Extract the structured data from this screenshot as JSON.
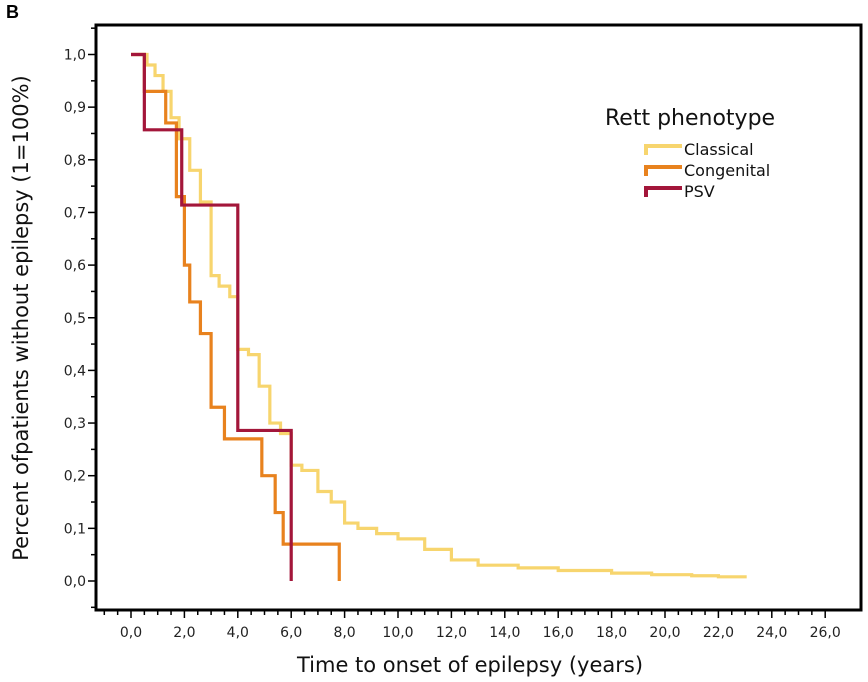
{
  "panel_label": "B",
  "chart_data": {
    "type": "line",
    "subtype": "kaplan-meier-step",
    "xlabel": "Time to onset of epilepsy (years)",
    "ylabel": "Percent ofpatients without  epilepsy (1=100%)",
    "xlim": [
      -1,
      26
    ],
    "ylim": [
      -0.05,
      1.05
    ],
    "x_ticks": [
      "0,0",
      "2,0",
      "4,0",
      "6,0",
      "8,0",
      "10,0",
      "12,0",
      "14,0",
      "16,0",
      "18,0",
      "20,0",
      "22,0",
      "24,0",
      "26,0"
    ],
    "x_tick_values": [
      0,
      2,
      4,
      6,
      8,
      10,
      12,
      14,
      16,
      18,
      20,
      22,
      24,
      26
    ],
    "y_ticks": [
      "0,0",
      "0,1",
      "0,2",
      "0,3",
      "0,4",
      "0,5",
      "0,6",
      "0,7",
      "0,8",
      "0,9",
      "1,0"
    ],
    "y_tick_values": [
      0,
      0.1,
      0.2,
      0.3,
      0.4,
      0.5,
      0.6,
      0.7,
      0.8,
      0.9,
      1.0
    ],
    "grid": false,
    "legend": {
      "title": "Rett phenotype",
      "position": "top-right"
    },
    "series": [
      {
        "name": "Classical",
        "color": "#f7d56e",
        "x": [
          0,
          0.6,
          0.9,
          1.2,
          1.5,
          1.8,
          2.2,
          2.6,
          3.0,
          3.3,
          3.7,
          4.0,
          4.4,
          4.8,
          5.2,
          5.6,
          6.0,
          6.4,
          7.0,
          7.5,
          8.0,
          8.5,
          9.2,
          10.0,
          11.0,
          12.0,
          13.0,
          14.5,
          16.0,
          18.0,
          19.5,
          21.0,
          22.0,
          23.0
        ],
        "y": [
          1.0,
          0.98,
          0.96,
          0.93,
          0.88,
          0.84,
          0.78,
          0.72,
          0.58,
          0.56,
          0.54,
          0.44,
          0.43,
          0.37,
          0.3,
          0.28,
          0.22,
          0.21,
          0.17,
          0.15,
          0.11,
          0.1,
          0.09,
          0.08,
          0.06,
          0.04,
          0.03,
          0.025,
          0.02,
          0.015,
          0.012,
          0.01,
          0.008,
          0.005
        ]
      },
      {
        "name": "Congenital",
        "color": "#e8821e",
        "x": [
          0,
          0.5,
          1.3,
          1.7,
          2.0,
          2.2,
          2.6,
          3.0,
          3.5,
          4.0,
          4.9,
          5.4,
          5.7,
          6.0,
          7.8
        ],
        "y": [
          1.0,
          0.93,
          0.87,
          0.73,
          0.6,
          0.53,
          0.47,
          0.33,
          0.27,
          0.27,
          0.2,
          0.13,
          0.07,
          0.07,
          0.0
        ]
      },
      {
        "name": "PSV",
        "color": "#a3163a",
        "x": [
          0,
          0.5,
          1.9,
          4.0,
          6.0
        ],
        "y": [
          1.0,
          0.857,
          0.714,
          0.286,
          0.0
        ]
      }
    ]
  }
}
